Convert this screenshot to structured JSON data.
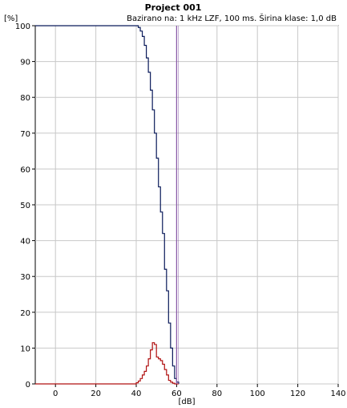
{
  "chart_data": {
    "type": "line",
    "title": "Project 001",
    "subtitle": "Bazirano na: 1 kHz  LZF, 100 ms. Širina klase: 1,0 dB",
    "ylabel": "[%]",
    "xlabel": "[dB]",
    "xlim": [
      -10,
      140
    ],
    "ylim": [
      0,
      100
    ],
    "xticks": [
      0,
      20,
      40,
      60,
      80,
      100,
      120,
      140
    ],
    "yticks": [
      0,
      10,
      20,
      30,
      40,
      50,
      60,
      70,
      80,
      90,
      100
    ],
    "grid": true,
    "colors": {
      "cumulative": "#0a1a5a",
      "distribution": "#b01010",
      "marker_line": "#8a5aa8"
    },
    "marker_x": 60,
    "series": [
      {
        "key": "cumulative",
        "step": true,
        "x": [
          -10,
          39,
          40,
          41,
          42,
          43,
          44,
          45,
          46,
          47,
          48,
          49,
          50,
          51,
          52,
          53,
          54,
          55,
          56,
          57,
          58,
          59,
          60,
          61
        ],
        "values": [
          100,
          100,
          100,
          99.5,
          98.5,
          97,
          94.5,
          91,
          87,
          82,
          76.5,
          70,
          63,
          55,
          48,
          42,
          32,
          26,
          17,
          10,
          5,
          1.5,
          0.5,
          0
        ]
      },
      {
        "key": "distribution",
        "step": true,
        "x": [
          -10,
          39,
          40,
          41,
          42,
          43,
          44,
          45,
          46,
          47,
          48,
          49,
          50,
          51,
          52,
          53,
          54,
          55,
          56,
          57,
          58,
          59,
          60,
          61
        ],
        "values": [
          0,
          0,
          0.3,
          0.8,
          1.5,
          2.5,
          3.5,
          5,
          7,
          9.5,
          11.5,
          11,
          7.5,
          7,
          6.5,
          5.5,
          4,
          2.5,
          1,
          0.5,
          0.2,
          0,
          0,
          0
        ]
      }
    ]
  }
}
